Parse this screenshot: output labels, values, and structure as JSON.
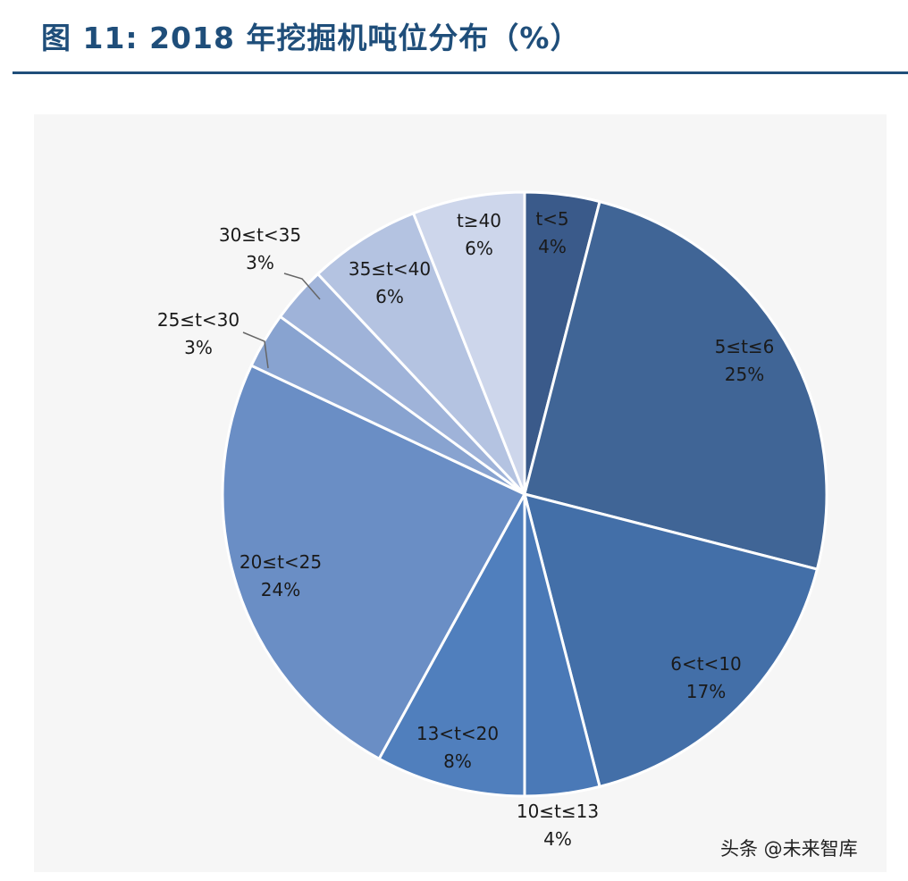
{
  "title": "图 11: 2018 年挖掘机吨位分布（%）",
  "watermark": "头条 @未来智库",
  "chart_data": {
    "type": "pie",
    "title": "图 11: 2018 年挖掘机吨位分布（%）",
    "slices": [
      {
        "label": "t<5",
        "value": 4,
        "display": "4%",
        "color": "#3a5a8a"
      },
      {
        "label": "5≤t≤6",
        "value": 25,
        "display": "25%",
        "color": "#406596"
      },
      {
        "label": "6<t<10",
        "value": 17,
        "display": "17%",
        "color": "#436fa8"
      },
      {
        "label": "10≤t≤13",
        "value": 4,
        "display": "4%",
        "color": "#4a79b7"
      },
      {
        "label": "13<t<20",
        "value": 8,
        "display": "8%",
        "color": "#507fbd"
      },
      {
        "label": "20≤t<25",
        "value": 24,
        "display": "24%",
        "color": "#6a8ec5"
      },
      {
        "label": "25≤t<30",
        "value": 3,
        "display": "3%",
        "color": "#88a3d0"
      },
      {
        "label": "30≤t<35",
        "value": 3,
        "display": "3%",
        "color": "#9fb3d9"
      },
      {
        "label": "35≤t<40",
        "value": 6,
        "display": "6%",
        "color": "#b4c3e1"
      },
      {
        "label": "t≥40",
        "value": 6,
        "display": "6%",
        "color": "#cdd6eb"
      }
    ],
    "legend": "none",
    "label_color": "#1a1a1a",
    "slice_border_color": "#ffffff"
  }
}
